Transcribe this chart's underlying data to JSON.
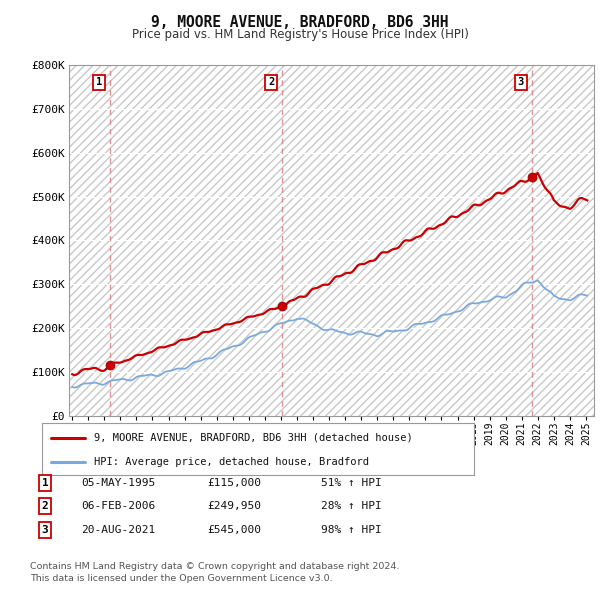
{
  "title": "9, MOORE AVENUE, BRADFORD, BD6 3HH",
  "subtitle": "Price paid vs. HM Land Registry's House Price Index (HPI)",
  "sale_prices": [
    115000,
    249950,
    545000
  ],
  "sale_years_num": [
    1995.37,
    2006.09,
    2021.64
  ],
  "sale_labels": [
    "1",
    "2",
    "3"
  ],
  "legend_entries": [
    "9, MOORE AVENUE, BRADFORD, BD6 3HH (detached house)",
    "HPI: Average price, detached house, Bradford"
  ],
  "table_rows": [
    [
      "1",
      "05-MAY-1995",
      "£115,000",
      "51% ↑ HPI"
    ],
    [
      "2",
      "06-FEB-2006",
      "£249,950",
      "28% ↑ HPI"
    ],
    [
      "3",
      "20-AUG-2021",
      "£545,000",
      "98% ↑ HPI"
    ]
  ],
  "footnote": "Contains HM Land Registry data © Crown copyright and database right 2024.\nThis data is licensed under the Open Government Licence v3.0.",
  "line_color_sales": "#cc0000",
  "line_color_hpi": "#7aaadd",
  "marker_color": "#cc0000",
  "vline_color": "#dd8888",
  "background_color": "#ffffff",
  "plot_bg_color": "#f0f0f0",
  "ylim": [
    0,
    800000
  ],
  "ytick_labels": [
    "£0",
    "£100K",
    "£200K",
    "£300K",
    "£400K",
    "£500K",
    "£600K",
    "£700K",
    "£800K"
  ],
  "ytick_values": [
    0,
    100000,
    200000,
    300000,
    400000,
    500000,
    600000,
    700000,
    800000
  ],
  "year_start": 1993,
  "year_end": 2025
}
